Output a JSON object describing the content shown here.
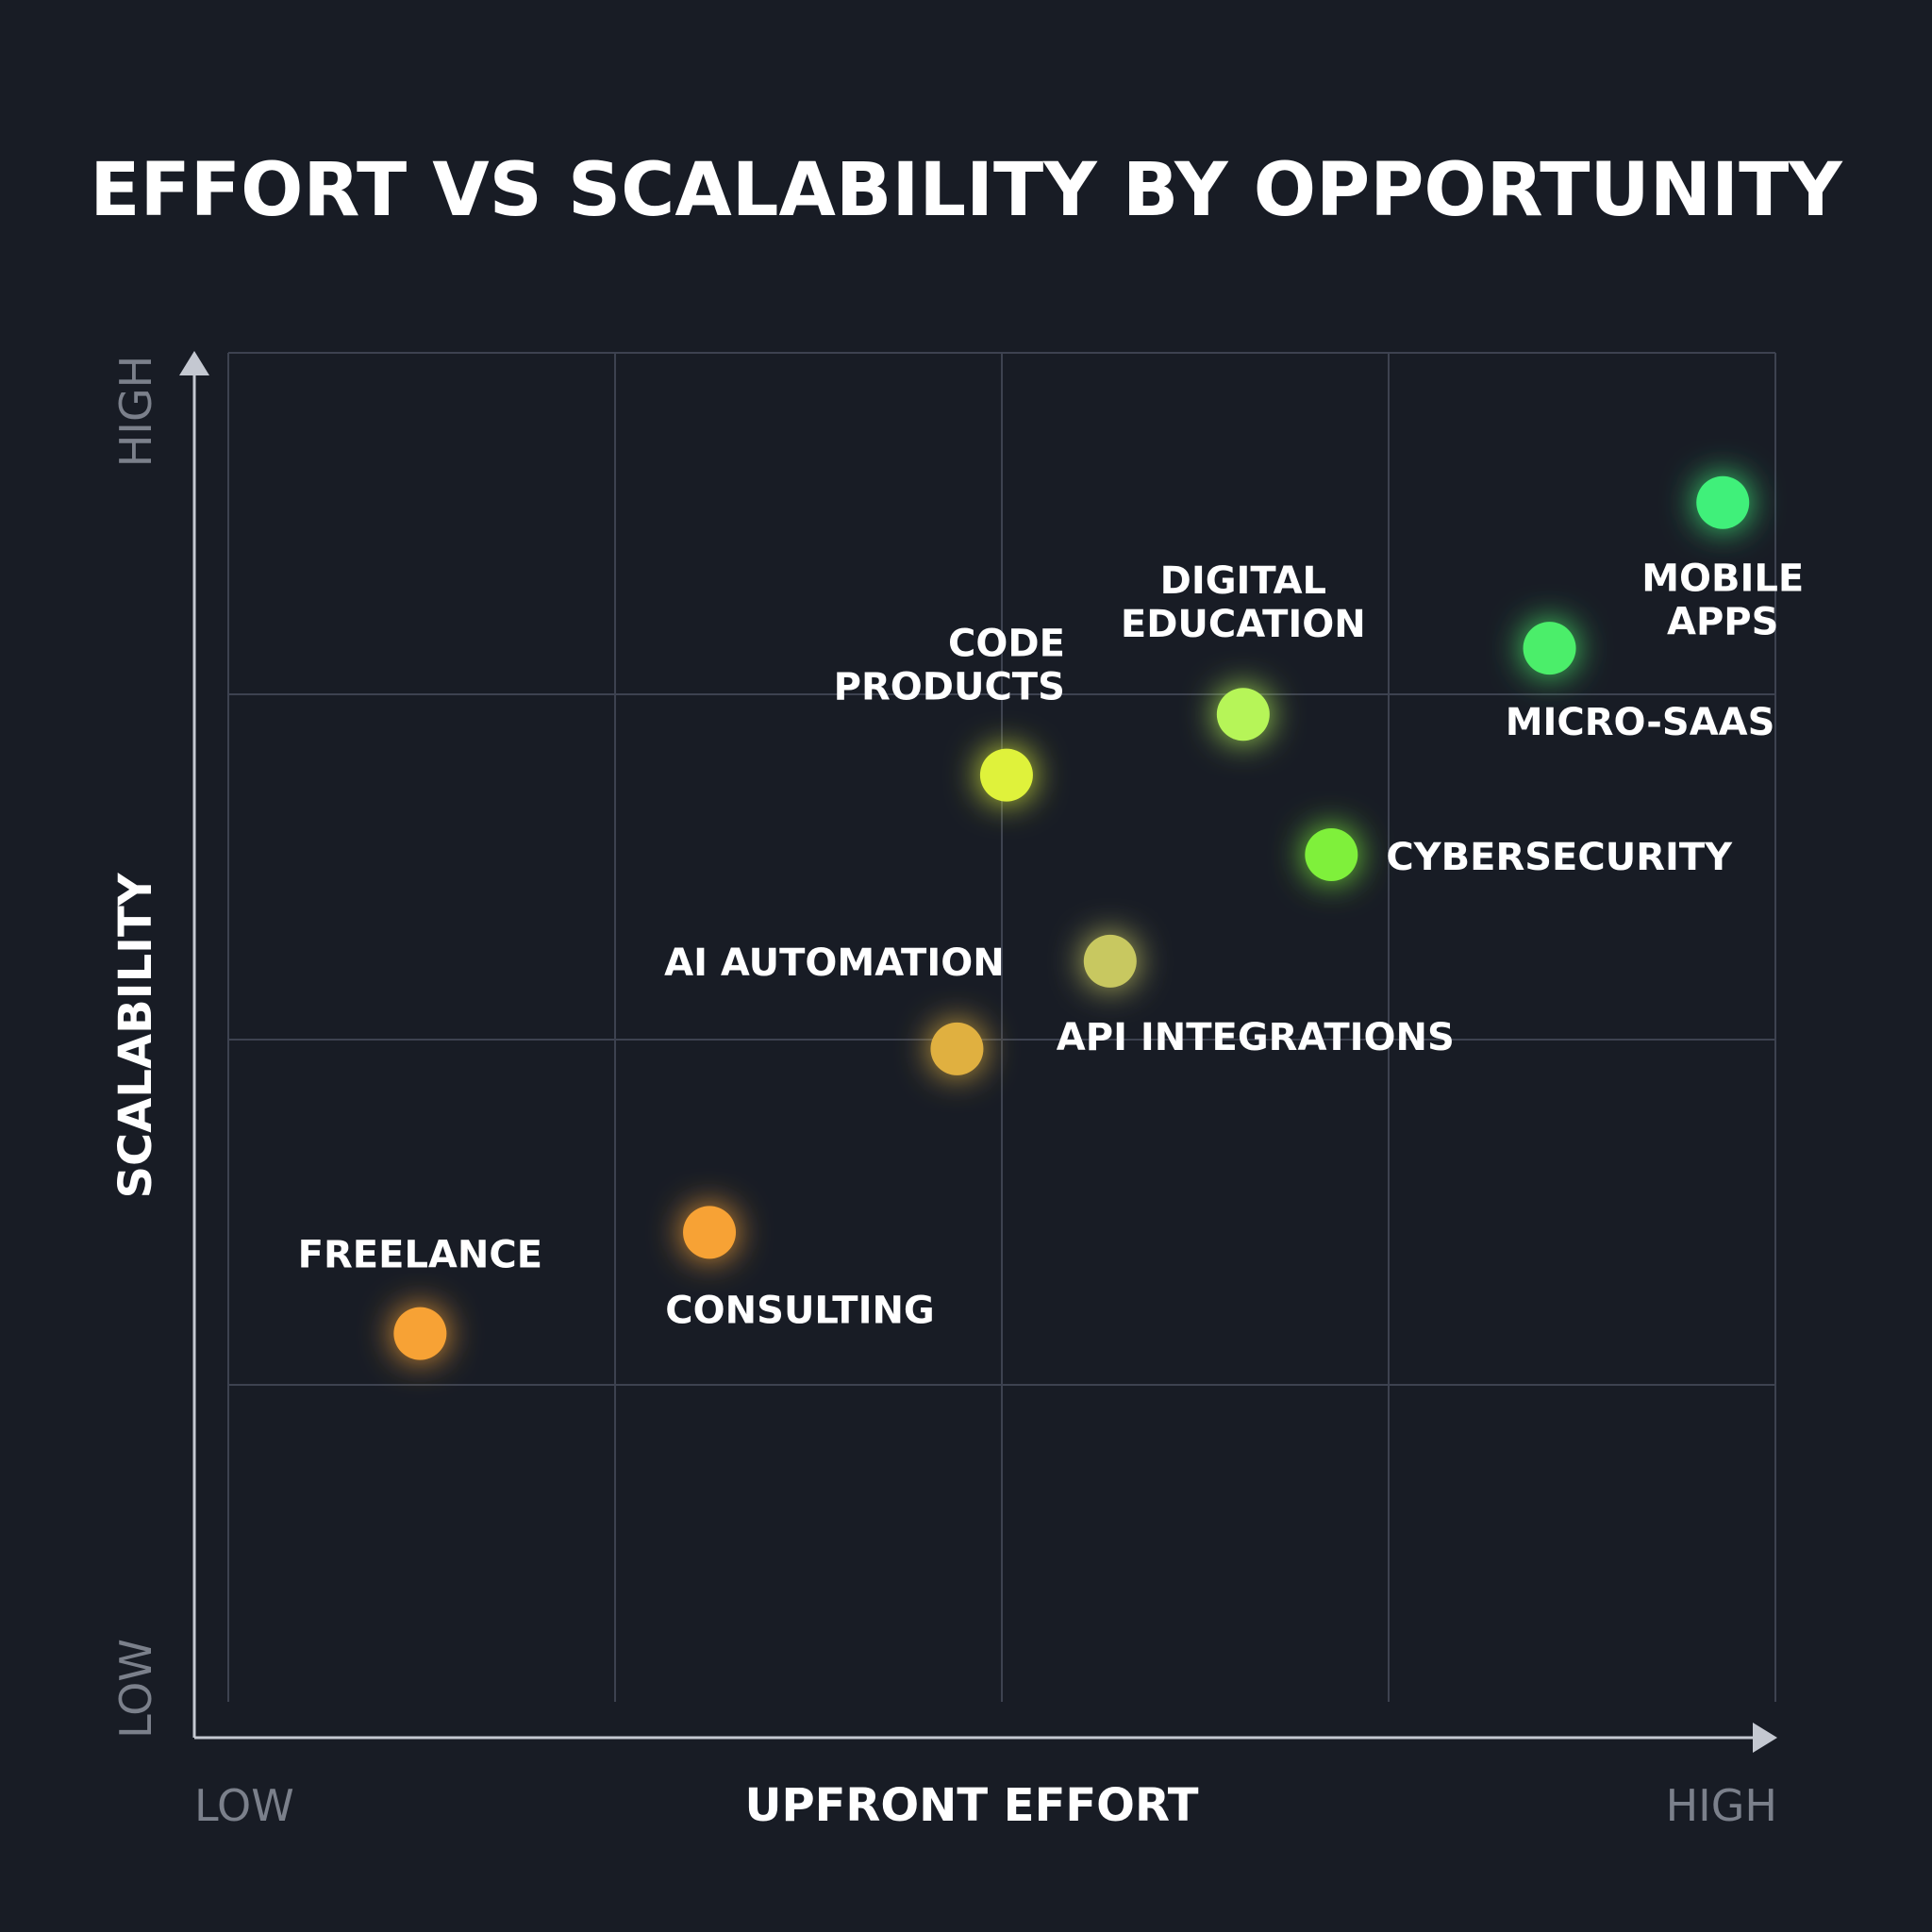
{
  "chart_data": {
    "type": "scatter",
    "title": "EFFORT VS SCALABILITY BY OPPORTUNITY",
    "xlabel": "UPFRONT EFFORT",
    "ylabel": "SCALABILITY",
    "x_tick_labels": {
      "low": "LOW",
      "high": "HIGH"
    },
    "y_tick_labels": {
      "low": "LOW",
      "high": "HIGH"
    },
    "xlim": [
      0,
      100
    ],
    "ylim": [
      0,
      100
    ],
    "grid": true,
    "points": [
      {
        "label": "FREELANCE",
        "x": 12.4,
        "y": 27.3,
        "color": "#f7a234"
      },
      {
        "label": "CONSULTING",
        "x": 31.1,
        "y": 34.8,
        "color": "#f7a234"
      },
      {
        "label": "AI AUTOMATION",
        "x": 47.1,
        "y": 48.4,
        "color": "#e0b040"
      },
      {
        "label": "API INTEGRATIONS",
        "x": 57.0,
        "y": 54.9,
        "color": "#c8c860"
      },
      {
        "label": "CODE PRODUCTS",
        "x": 50.3,
        "y": 68.7,
        "color": "#dff23a"
      },
      {
        "label": "CYBERSECURITY",
        "x": 71.3,
        "y": 62.8,
        "color": "#7ff03a"
      },
      {
        "label": "DIGITAL EDUCATION",
        "x": 65.6,
        "y": 73.2,
        "color": "#b6f559"
      },
      {
        "label": "MICRO-SAAS",
        "x": 85.4,
        "y": 78.1,
        "color": "#4cee6a"
      },
      {
        "label": "MOBILE APPS",
        "x": 96.6,
        "y": 88.9,
        "color": "#3ff07a"
      }
    ]
  },
  "colors": {
    "background": "#181c25",
    "grid": "#3d4250",
    "axis": "#c4c8d1",
    "text": "#ffffff",
    "muted_text": "#7b808b"
  }
}
